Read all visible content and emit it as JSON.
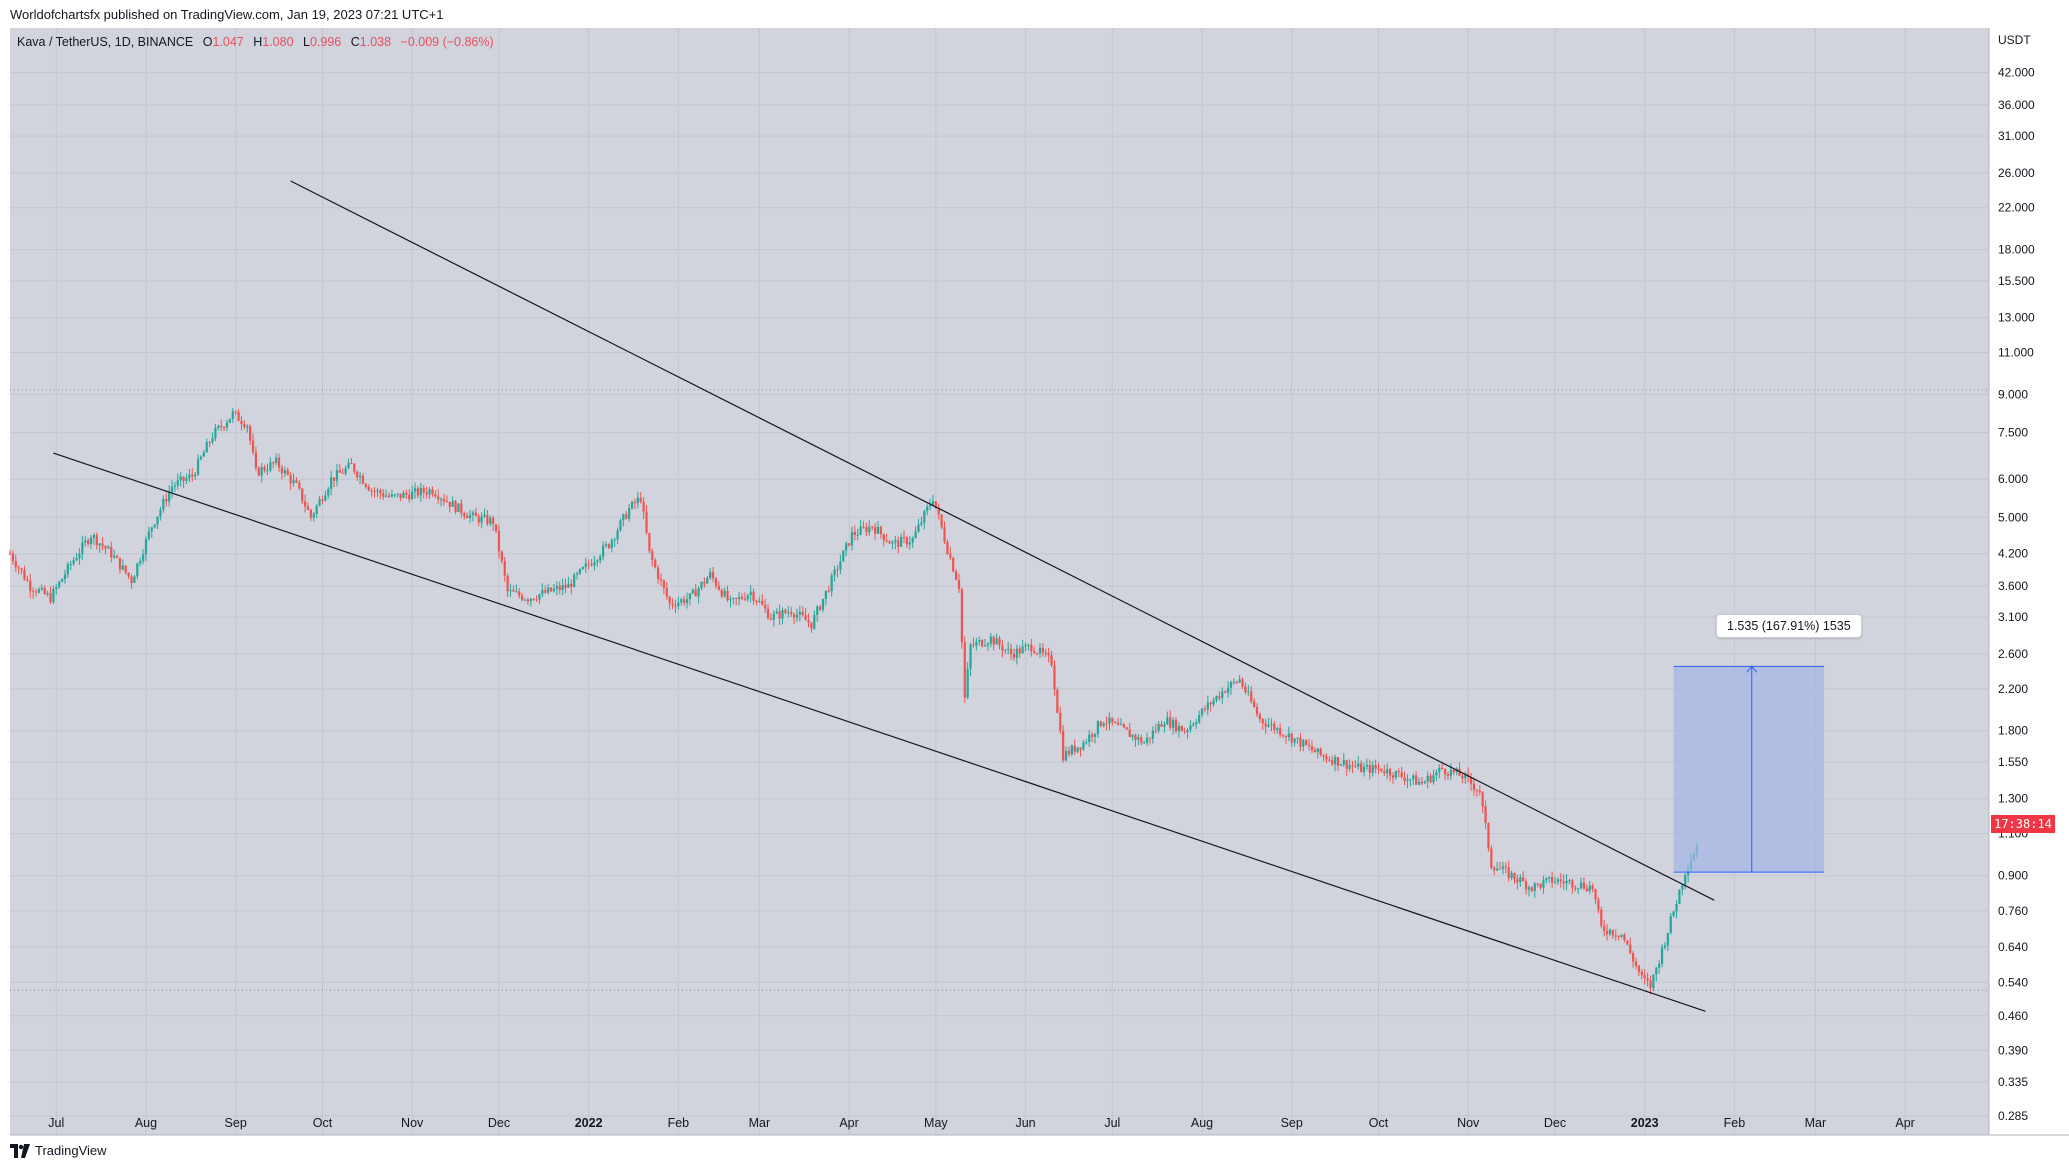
{
  "header": {
    "publisher": "Worldofchartsfx published on TradingView.com, Jan 19, 2023 07:21 UTC+1"
  },
  "legend": {
    "symbol": "Kava / TetherUS, 1D, BINANCE",
    "open_label": "O",
    "open": "1.047",
    "high_label": "H",
    "high": "1.080",
    "low_label": "L",
    "low": "0.996",
    "close_label": "C",
    "close": "1.038",
    "change": "−0.009 (−0.86%)"
  },
  "footer": {
    "brand": "TradingView"
  },
  "price_badge": "17:38:14",
  "measure": {
    "label": "1.535 (167.91%) 1535"
  },
  "colors": {
    "background": "#d1d4dc",
    "up": "#26a69a",
    "down": "#ef5350",
    "badge": "#f23645",
    "measure_fill": "#a3b5e6",
    "measure_line": "#2962ff"
  },
  "chart_data": {
    "type": "candlestick",
    "symbol": "Kava / TetherUS",
    "interval": "1D",
    "exchange": "BINANCE",
    "currency_label": "USDT",
    "y_scale": "log",
    "ylim": [
      0.26,
      52
    ],
    "x_range": [
      "2021-06-15",
      "2023-04-30"
    ],
    "y_ticks": [
      42.0,
      36.0,
      31.0,
      26.0,
      22.0,
      18.0,
      15.5,
      13.0,
      11.0,
      9.0,
      7.5,
      6.0,
      5.0,
      4.2,
      3.6,
      3.1,
      2.6,
      2.2,
      1.8,
      1.55,
      1.3,
      1.1,
      0.9,
      0.76,
      0.64,
      0.54,
      0.46,
      0.39,
      0.335,
      0.285
    ],
    "y_tick_labels": [
      "42.000",
      "36.000",
      "31.000",
      "26.000",
      "22.000",
      "18.000",
      "15.500",
      "13.000",
      "11.000",
      "9.000",
      "7.500",
      "6.000",
      "5.000",
      "4.200",
      "3.600",
      "3.100",
      "2.600",
      "2.200",
      "1.800",
      "1.550",
      "1.300",
      "1.100",
      "0.900",
      "0.760",
      "0.640",
      "0.540",
      "0.460",
      "0.390",
      "0.335",
      "0.285"
    ],
    "x_ticks": [
      {
        "label": "Jul",
        "date": "2021-07-01",
        "bold": false
      },
      {
        "label": "Aug",
        "date": "2021-08-01",
        "bold": false
      },
      {
        "label": "Sep",
        "date": "2021-09-01",
        "bold": false
      },
      {
        "label": "Oct",
        "date": "2021-10-01",
        "bold": false
      },
      {
        "label": "Nov",
        "date": "2021-11-01",
        "bold": false
      },
      {
        "label": "Dec",
        "date": "2021-12-01",
        "bold": false
      },
      {
        "label": "2022",
        "date": "2022-01-01",
        "bold": true
      },
      {
        "label": "Feb",
        "date": "2022-02-01",
        "bold": false
      },
      {
        "label": "Mar",
        "date": "2022-03-01",
        "bold": false
      },
      {
        "label": "Apr",
        "date": "2022-04-01",
        "bold": false
      },
      {
        "label": "May",
        "date": "2022-05-01",
        "bold": false
      },
      {
        "label": "Jun",
        "date": "2022-06-01",
        "bold": false
      },
      {
        "label": "Jul",
        "date": "2022-07-01",
        "bold": false
      },
      {
        "label": "Aug",
        "date": "2022-08-01",
        "bold": false
      },
      {
        "label": "Sep",
        "date": "2022-09-01",
        "bold": false
      },
      {
        "label": "Oct",
        "date": "2022-10-01",
        "bold": false
      },
      {
        "label": "Nov",
        "date": "2022-11-01",
        "bold": false
      },
      {
        "label": "Dec",
        "date": "2022-12-01",
        "bold": false
      },
      {
        "label": "2023",
        "date": "2023-01-01",
        "bold": true
      },
      {
        "label": "Feb",
        "date": "2023-02-01",
        "bold": false
      },
      {
        "label": "Mar",
        "date": "2023-03-01",
        "bold": false
      },
      {
        "label": "Apr",
        "date": "2023-04-01",
        "bold": false
      }
    ],
    "horizontal_lines": [
      9.2,
      0.52
    ],
    "trendlines": [
      {
        "name": "upper",
        "from": {
          "date": "2021-09-20",
          "price": 25.0
        },
        "to": {
          "date": "2023-01-25",
          "price": 0.8
        }
      },
      {
        "name": "lower",
        "from": {
          "date": "2021-06-30",
          "price": 6.8
        },
        "to": {
          "date": "2023-01-22",
          "price": 0.47
        }
      }
    ],
    "measure_box": {
      "from_date": "2023-01-11",
      "to_date": "2023-03-04",
      "low": 0.915,
      "high": 2.45,
      "arrow_date": "2023-02-07"
    },
    "price_path": [
      {
        "date": "2021-06-15",
        "price": 4.2
      },
      {
        "date": "2021-06-22",
        "price": 3.6
      },
      {
        "date": "2021-06-29",
        "price": 3.4
      },
      {
        "date": "2021-07-06",
        "price": 4.0
      },
      {
        "date": "2021-07-13",
        "price": 4.6
      },
      {
        "date": "2021-07-20",
        "price": 4.2
      },
      {
        "date": "2021-07-27",
        "price": 3.7
      },
      {
        "date": "2021-08-03",
        "price": 4.8
      },
      {
        "date": "2021-08-10",
        "price": 5.8
      },
      {
        "date": "2021-08-17",
        "price": 6.1
      },
      {
        "date": "2021-08-24",
        "price": 7.4
      },
      {
        "date": "2021-08-31",
        "price": 8.2
      },
      {
        "date": "2021-09-05",
        "price": 7.8
      },
      {
        "date": "2021-09-08",
        "price": 6.2
      },
      {
        "date": "2021-09-15",
        "price": 6.5
      },
      {
        "date": "2021-09-22",
        "price": 5.8
      },
      {
        "date": "2021-09-27",
        "price": 5.0
      },
      {
        "date": "2021-10-04",
        "price": 6.0
      },
      {
        "date": "2021-10-11",
        "price": 6.4
      },
      {
        "date": "2021-10-18",
        "price": 5.7
      },
      {
        "date": "2021-10-25",
        "price": 5.5
      },
      {
        "date": "2021-11-01",
        "price": 5.6
      },
      {
        "date": "2021-11-08",
        "price": 5.7
      },
      {
        "date": "2021-11-15",
        "price": 5.3
      },
      {
        "date": "2021-11-22",
        "price": 5.0
      },
      {
        "date": "2021-11-29",
        "price": 4.9
      },
      {
        "date": "2021-12-04",
        "price": 3.5
      },
      {
        "date": "2021-12-11",
        "price": 3.4
      },
      {
        "date": "2021-12-18",
        "price": 3.5
      },
      {
        "date": "2021-12-25",
        "price": 3.6
      },
      {
        "date": "2022-01-01",
        "price": 4.0
      },
      {
        "date": "2022-01-08",
        "price": 4.4
      },
      {
        "date": "2022-01-15",
        "price": 5.2
      },
      {
        "date": "2022-01-19",
        "price": 5.5
      },
      {
        "date": "2022-01-22",
        "price": 4.2
      },
      {
        "date": "2022-01-29",
        "price": 3.3
      },
      {
        "date": "2022-02-05",
        "price": 3.4
      },
      {
        "date": "2022-02-12",
        "price": 3.8
      },
      {
        "date": "2022-02-19",
        "price": 3.3
      },
      {
        "date": "2022-02-26",
        "price": 3.5
      },
      {
        "date": "2022-03-05",
        "price": 3.1
      },
      {
        "date": "2022-03-12",
        "price": 3.2
      },
      {
        "date": "2022-03-19",
        "price": 3.0
      },
      {
        "date": "2022-03-26",
        "price": 3.7
      },
      {
        "date": "2022-04-02",
        "price": 4.6
      },
      {
        "date": "2022-04-09",
        "price": 4.8
      },
      {
        "date": "2022-04-16",
        "price": 4.4
      },
      {
        "date": "2022-04-23",
        "price": 4.5
      },
      {
        "date": "2022-04-30",
        "price": 5.5
      },
      {
        "date": "2022-05-05",
        "price": 4.3
      },
      {
        "date": "2022-05-09",
        "price": 3.6
      },
      {
        "date": "2022-05-11",
        "price": 2.1
      },
      {
        "date": "2022-05-13",
        "price": 2.7
      },
      {
        "date": "2022-05-20",
        "price": 2.8
      },
      {
        "date": "2022-05-27",
        "price": 2.6
      },
      {
        "date": "2022-06-03",
        "price": 2.7
      },
      {
        "date": "2022-06-10",
        "price": 2.5
      },
      {
        "date": "2022-06-14",
        "price": 1.6
      },
      {
        "date": "2022-06-21",
        "price": 1.7
      },
      {
        "date": "2022-06-28",
        "price": 1.9
      },
      {
        "date": "2022-07-05",
        "price": 1.8
      },
      {
        "date": "2022-07-12",
        "price": 1.7
      },
      {
        "date": "2022-07-19",
        "price": 1.9
      },
      {
        "date": "2022-07-26",
        "price": 1.8
      },
      {
        "date": "2022-08-02",
        "price": 2.0
      },
      {
        "date": "2022-08-09",
        "price": 2.2
      },
      {
        "date": "2022-08-14",
        "price": 2.3
      },
      {
        "date": "2022-08-21",
        "price": 1.9
      },
      {
        "date": "2022-08-28",
        "price": 1.8
      },
      {
        "date": "2022-09-04",
        "price": 1.7
      },
      {
        "date": "2022-09-11",
        "price": 1.6
      },
      {
        "date": "2022-09-18",
        "price": 1.55
      },
      {
        "date": "2022-09-25",
        "price": 1.5
      },
      {
        "date": "2022-10-02",
        "price": 1.5
      },
      {
        "date": "2022-10-09",
        "price": 1.45
      },
      {
        "date": "2022-10-16",
        "price": 1.4
      },
      {
        "date": "2022-10-23",
        "price": 1.5
      },
      {
        "date": "2022-10-30",
        "price": 1.45
      },
      {
        "date": "2022-11-05",
        "price": 1.35
      },
      {
        "date": "2022-11-09",
        "price": 0.95
      },
      {
        "date": "2022-11-16",
        "price": 0.9
      },
      {
        "date": "2022-11-23",
        "price": 0.85
      },
      {
        "date": "2022-11-30",
        "price": 0.88
      },
      {
        "date": "2022-12-07",
        "price": 0.87
      },
      {
        "date": "2022-12-14",
        "price": 0.85
      },
      {
        "date": "2022-12-17",
        "price": 0.7
      },
      {
        "date": "2022-12-24",
        "price": 0.68
      },
      {
        "date": "2022-12-31",
        "price": 0.55
      },
      {
        "date": "2023-01-03",
        "price": 0.53
      },
      {
        "date": "2023-01-07",
        "price": 0.63
      },
      {
        "date": "2023-01-11",
        "price": 0.76
      },
      {
        "date": "2023-01-15",
        "price": 0.92
      },
      {
        "date": "2023-01-19",
        "price": 1.038
      }
    ]
  }
}
